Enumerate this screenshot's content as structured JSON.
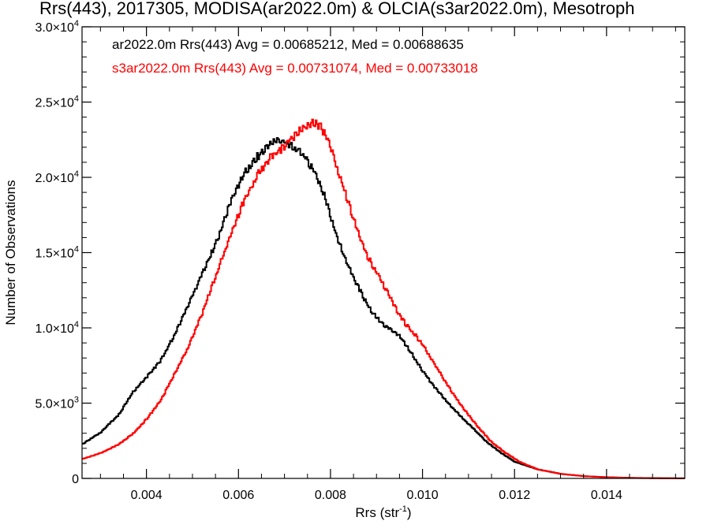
{
  "chart_data": {
    "type": "line",
    "title": "Rrs(443), 2017305, MODISA(ar2022.0m) & OLCIA(s3ar2022.0m), Mesotroph",
    "xlabel": "Rrs (str",
    "xlabel_sup": "-1",
    "xlabel_end": ")",
    "ylabel": "Number of Observations",
    "xlim": [
      0.0026,
      0.0157
    ],
    "ylim": [
      0,
      30000
    ],
    "x_ticks": [
      {
        "value": 0.004,
        "label": "0.004"
      },
      {
        "value": 0.006,
        "label": "0.006"
      },
      {
        "value": 0.008,
        "label": "0.008"
      },
      {
        "value": 0.01,
        "label": "0.010"
      },
      {
        "value": 0.012,
        "label": "0.012"
      },
      {
        "value": 0.014,
        "label": "0.014"
      }
    ],
    "y_ticks": [
      {
        "value": 0,
        "mantissa": "0",
        "exp": ""
      },
      {
        "value": 5000,
        "mantissa": "5.0×10",
        "exp": "3"
      },
      {
        "value": 10000,
        "mantissa": "1.0×10",
        "exp": "4"
      },
      {
        "value": 15000,
        "mantissa": "1.5×10",
        "exp": "4"
      },
      {
        "value": 20000,
        "mantissa": "2.0×10",
        "exp": "4"
      },
      {
        "value": 25000,
        "mantissa": "2.5×10",
        "exp": "4"
      },
      {
        "value": 30000,
        "mantissa": "3.0×10",
        "exp": "4"
      }
    ],
    "legend_placement": "top-left",
    "series": [
      {
        "legend": "ar2022.0m Rrs(443) Avg = 0.00685212, Med = 0.00688635",
        "color": "#000000",
        "x": [
          0.0026,
          0.003,
          0.0034,
          0.0037,
          0.004,
          0.0043,
          0.0046,
          0.0049,
          0.0052,
          0.0055,
          0.0058,
          0.0061,
          0.0064,
          0.0067,
          0.0069,
          0.0071,
          0.0073,
          0.0075,
          0.0077,
          0.0079,
          0.0081,
          0.0083,
          0.0085,
          0.0087,
          0.0089,
          0.0091,
          0.0093,
          0.0095,
          0.0097,
          0.0099,
          0.0102,
          0.0105,
          0.0108,
          0.0111,
          0.0114,
          0.0117,
          0.012,
          0.0125,
          0.013,
          0.0135,
          0.014,
          0.0145,
          0.015,
          0.0157
        ],
        "y": [
          2300,
          3100,
          4300,
          5800,
          6800,
          7900,
          9600,
          11600,
          13700,
          15700,
          18300,
          20300,
          21500,
          22400,
          22600,
          22300,
          21900,
          21200,
          20100,
          18500,
          16400,
          14700,
          13400,
          12100,
          11100,
          10400,
          9900,
          9500,
          8600,
          7600,
          6300,
          5200,
          4200,
          3300,
          2400,
          1700,
          1100,
          600,
          300,
          150,
          80,
          40,
          20,
          5
        ]
      },
      {
        "legend": "s3ar2022.0m Rrs(443) Avg = 0.00731074, Med = 0.00733018",
        "color": "#ff0000",
        "x": [
          0.0026,
          0.003,
          0.0034,
          0.0037,
          0.004,
          0.0043,
          0.0046,
          0.0049,
          0.0052,
          0.0055,
          0.0058,
          0.0061,
          0.0064,
          0.0067,
          0.007,
          0.0072,
          0.0074,
          0.0076,
          0.0078,
          0.008,
          0.0082,
          0.0084,
          0.0086,
          0.0088,
          0.009,
          0.0092,
          0.0094,
          0.0096,
          0.0098,
          0.01,
          0.0103,
          0.0106,
          0.0109,
          0.0112,
          0.0115,
          0.0118,
          0.0121,
          0.0125,
          0.013,
          0.0135,
          0.014,
          0.0145,
          0.015,
          0.0157
        ],
        "y": [
          1300,
          1700,
          2300,
          3000,
          4000,
          5200,
          7000,
          8800,
          11000,
          13600,
          16100,
          18500,
          20300,
          21500,
          22200,
          22900,
          23400,
          23800,
          23400,
          22100,
          20100,
          18200,
          16300,
          14800,
          13700,
          12600,
          11400,
          10400,
          9700,
          8900,
          7400,
          5900,
          4600,
          3400,
          2400,
          1700,
          1100,
          600,
          300,
          150,
          70,
          30,
          15,
          5
        ]
      }
    ]
  }
}
